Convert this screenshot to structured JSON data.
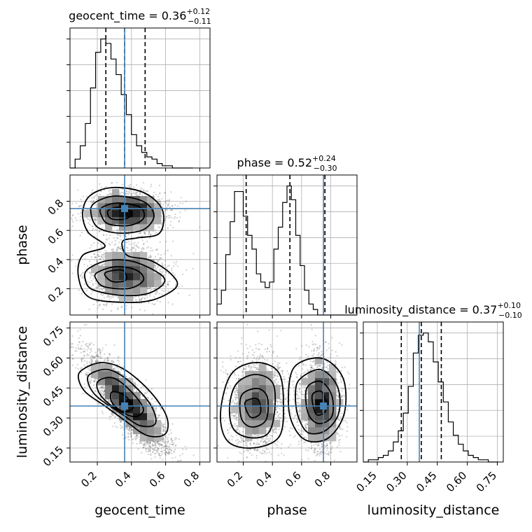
{
  "chart_data": {
    "type": "corner",
    "parameters": [
      "geocent_time",
      "phase",
      "luminosity_distance"
    ],
    "truths": [
      0.36,
      0.75,
      0.36
    ],
    "ranges": [
      [
        0.04,
        0.86
      ],
      [
        0.02,
        0.98
      ],
      [
        0.08,
        0.78
      ]
    ],
    "ticks": [
      [
        "0.2",
        "0.4",
        "0.6",
        "0.8"
      ],
      [
        "0.2",
        "0.4",
        "0.6",
        "0.8"
      ],
      [
        "0.15",
        "0.30",
        "0.45",
        "0.60",
        "0.75"
      ]
    ],
    "titles": [
      {
        "label": "geocent_time",
        "median": "0.36",
        "plus": "+0.12",
        "minus": "−0.11"
      },
      {
        "label": "phase",
        "median": "0.52",
        "plus": "+0.24",
        "minus": "−0.30"
      },
      {
        "label": "luminosity_distance",
        "median": "0.37",
        "plus": "+0.10",
        "minus": "−0.10"
      }
    ],
    "quantiles": [
      [
        0.25,
        0.36,
        0.48
      ],
      [
        0.22,
        0.52,
        0.76
      ],
      [
        0.27,
        0.37,
        0.47
      ]
    ],
    "histograms": [
      {
        "bin_start": 0.04,
        "bin_width": 0.03,
        "counts": [
          0,
          4,
          10,
          20,
          36,
          52,
          58,
          56,
          49,
          42,
          33,
          24,
          15,
          10,
          7,
          5,
          4,
          2,
          1,
          1,
          0,
          0,
          0,
          0
        ]
      },
      {
        "bin_start": 0.02,
        "bin_width": 0.03,
        "counts": [
          4,
          9,
          22,
          34,
          45,
          45,
          36,
          29,
          24,
          15,
          12,
          10,
          12,
          24,
          32,
          41,
          47,
          42,
          29,
          18,
          9,
          4,
          2,
          0,
          0,
          0,
          0,
          0,
          0,
          0,
          0,
          0
        ]
      },
      {
        "bin_start": 0.08,
        "bin_width": 0.025,
        "counts": [
          0,
          1,
          1,
          2,
          3,
          5,
          9,
          14,
          22,
          34,
          49,
          57,
          58,
          54,
          45,
          36,
          27,
          18,
          12,
          8,
          5,
          3,
          2,
          1,
          1,
          0,
          0
        ]
      }
    ],
    "xlabels": [
      "geocent_time",
      "phase",
      "luminosity_distance"
    ],
    "ylabels": [
      "",
      "phase",
      "luminosity_distance"
    ],
    "grid": true
  }
}
